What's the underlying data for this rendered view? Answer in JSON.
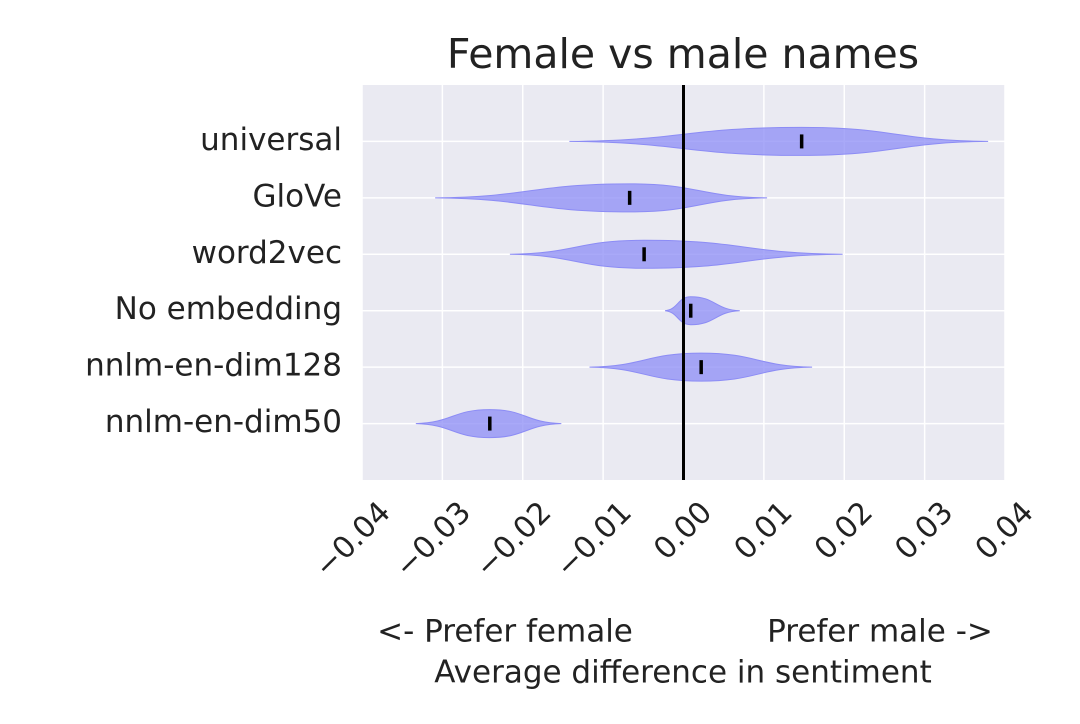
{
  "chart_data": {
    "type": "violin",
    "title": "Female vs male names",
    "categories": [
      "universal",
      "GloVe",
      "word2vec",
      "No embedding",
      "nnlm-en-dim128",
      "nnlm-en-dim50"
    ],
    "medians": [
      0.0147,
      -0.0067,
      -0.0049,
      0.0009,
      0.0022,
      -0.0241
    ],
    "mins": [
      -0.0142,
      -0.0309,
      -0.0216,
      -0.0023,
      -0.0117,
      -0.0333
    ],
    "maxs": [
      0.0379,
      0.0104,
      0.0198,
      0.007,
      0.016,
      -0.0152
    ],
    "color": "#8c8cf5",
    "xlim": [
      -0.04,
      0.04
    ],
    "xticks": [
      {
        "value": -0.04,
        "label": "−0.04"
      },
      {
        "value": -0.03,
        "label": "−0.03"
      },
      {
        "value": -0.02,
        "label": "−0.02"
      },
      {
        "value": -0.01,
        "label": "−0.01"
      },
      {
        "value": 0,
        "label": "0.00"
      },
      0.01,
      0.02,
      0.03,
      0.04
    ],
    "xlabel_left": "<- Prefer female",
    "xlabel_right": "Prefer male ->",
    "xlabel": "Average difference in sentiment",
    "grid": true
  }
}
